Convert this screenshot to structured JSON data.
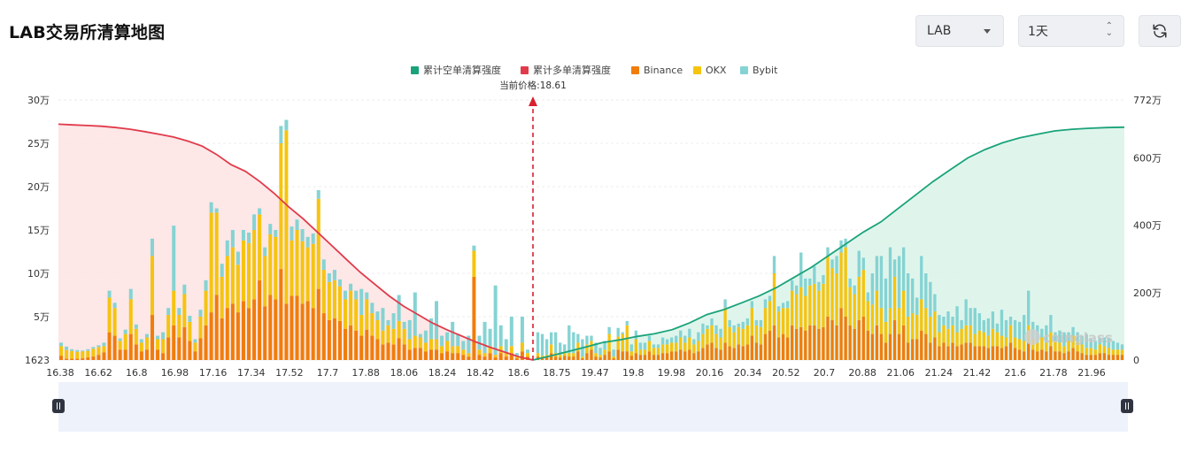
{
  "header": {
    "title": "LAB交易所清算地图",
    "symbol_select": "LAB",
    "range_select": "1天"
  },
  "icons": {
    "refresh": "refresh-icon",
    "caret": "chevron-down-icon",
    "updown": "updown-arrows-icon"
  },
  "colors": {
    "short_cum": "#1aa37a",
    "long_cum": "#e03b4b",
    "binance": "#f07d0a",
    "okx": "#f5c40f",
    "bybit": "#85d3d3",
    "long_area": "#fde3e3",
    "short_area": "#dbf4ea"
  },
  "watermark": "coinglass",
  "chart_data": {
    "type": "bar",
    "legend": [
      "累计空单清算强度",
      "累计多单清算强度",
      "Binance",
      "OKX",
      "Bybit"
    ],
    "current_price_label": "当前价格:18.61",
    "current_price": 18.61,
    "x_tick_labels": [
      "16.38",
      "16.62",
      "16.8",
      "16.98",
      "17.16",
      "17.34",
      "17.52",
      "17.7",
      "17.88",
      "18.06",
      "18.24",
      "18.42",
      "18.6",
      "18.75",
      "19.47",
      "19.8",
      "19.98",
      "20.16",
      "20.34",
      "20.52",
      "20.7",
      "20.88",
      "21.06",
      "21.24",
      "21.42",
      "21.6",
      "21.78",
      "21.96"
    ],
    "y_left_ticks": [
      "1623",
      "5万",
      "10万",
      "15万",
      "20万",
      "25万",
      "30万"
    ],
    "y_left_range": [
      0,
      300000
    ],
    "y_right_ticks": [
      "0",
      "200万",
      "400万",
      "600万",
      "772万"
    ],
    "y_right_range": [
      0,
      7720000
    ],
    "grid": true,
    "legend_position": "top-center",
    "bars_left_of_price": [
      [
        5000,
        11000,
        4000
      ],
      [
        1500,
        10000,
        4000
      ],
      [
        1500,
        9000,
        2000
      ],
      [
        1500,
        8000,
        2000
      ],
      [
        2000,
        8000,
        1000
      ],
      [
        3000,
        7500,
        2000
      ],
      [
        4000,
        9000,
        2000
      ],
      [
        6000,
        9000,
        2000
      ],
      [
        9000,
        7000,
        4000
      ],
      [
        32000,
        40000,
        8000
      ],
      [
        28000,
        32000,
        6000
      ],
      [
        12000,
        10000,
        3000
      ],
      [
        12000,
        18000,
        5000
      ],
      [
        30000,
        40000,
        12000
      ],
      [
        18000,
        18000,
        5000
      ],
      [
        10000,
        10000,
        4000
      ],
      [
        12000,
        14000,
        4000
      ],
      [
        52000,
        68000,
        20000
      ],
      [
        12000,
        12000,
        4000
      ],
      [
        8000,
        16000,
        8000
      ],
      [
        26000,
        26000,
        8000
      ],
      [
        40000,
        40000,
        75000
      ],
      [
        26000,
        26000,
        8000
      ],
      [
        38000,
        38000,
        11000
      ],
      [
        22000,
        22000,
        7000
      ],
      [
        10000,
        10000,
        4000
      ],
      [
        25000,
        25000,
        8000
      ],
      [
        40000,
        40000,
        12000
      ],
      [
        55000,
        115000,
        12000
      ],
      [
        75000,
        95000,
        5000
      ],
      [
        48000,
        48000,
        15000
      ],
      [
        60000,
        60000,
        18000
      ],
      [
        65000,
        65000,
        20000
      ],
      [
        55000,
        55000,
        15000
      ],
      [
        68000,
        70000,
        12000
      ],
      [
        60000,
        75000,
        12000
      ],
      [
        70000,
        80000,
        18000
      ],
      [
        92000,
        76000,
        7000
      ],
      [
        62000,
        58000,
        10000
      ],
      [
        75000,
        70000,
        12000
      ],
      [
        70000,
        72000,
        8000
      ],
      [
        105000,
        145000,
        20000
      ],
      [
        65000,
        200000,
        12000
      ],
      [
        74000,
        64000,
        16000
      ],
      [
        74000,
        76000,
        12000
      ],
      [
        65000,
        72000,
        14000
      ],
      [
        68000,
        62000,
        12000
      ],
      [
        60000,
        74000,
        12000
      ],
      [
        82000,
        104000,
        10000
      ],
      [
        54000,
        50000,
        12000
      ],
      [
        46000,
        44000,
        10000
      ],
      [
        48000,
        44000,
        12000
      ],
      [
        45000,
        40000,
        8000
      ],
      [
        36000,
        34000,
        10000
      ],
      [
        40000,
        40000,
        8000
      ],
      [
        34000,
        36000,
        10000
      ],
      [
        28000,
        24000,
        30000
      ],
      [
        35000,
        35000,
        8000
      ],
      [
        28000,
        26000,
        12000
      ],
      [
        24000,
        22000,
        10000
      ],
      [
        18000,
        16000,
        26000
      ],
      [
        20000,
        20000,
        6000
      ],
      [
        18000,
        18000,
        18000
      ],
      [
        25000,
        20000,
        30000
      ],
      [
        18000,
        18000,
        8000
      ],
      [
        12000,
        12000,
        22000
      ],
      [
        14000,
        14000,
        50000
      ],
      [
        14000,
        12000,
        4000
      ],
      [
        10000,
        10000,
        14000
      ],
      [
        12000,
        12000,
        24000
      ],
      [
        12000,
        12000,
        44000
      ],
      [
        8000,
        8000,
        12000
      ],
      [
        10000,
        12000,
        10000
      ],
      [
        8000,
        8000,
        28000
      ],
      [
        8000,
        8000,
        14000
      ],
      [
        6000,
        6000,
        10000
      ],
      [
        4000,
        4000,
        20000
      ],
      [
        96000,
        30000,
        6000
      ],
      [
        6000,
        6000,
        16000
      ],
      [
        4000,
        4000,
        36000
      ],
      [
        8000,
        8000,
        20000
      ],
      [
        3000,
        3000,
        80000
      ],
      [
        8000,
        8000,
        24000
      ],
      [
        4000,
        4000,
        16000
      ],
      [
        8000,
        8000,
        34000
      ],
      [
        2000,
        2000,
        4000
      ],
      [
        10000,
        10000,
        30000
      ],
      [
        4000,
        4000,
        4000
      ]
    ],
    "bars_right_of_price": [
      [
        4000,
        4000,
        24000
      ],
      [
        2000,
        3000,
        25000
      ],
      [
        3000,
        3000,
        18000
      ],
      [
        8000,
        10000,
        14000
      ],
      [
        4000,
        4000,
        24000
      ],
      [
        3000,
        3000,
        14000
      ],
      [
        5000,
        5000,
        8000
      ],
      [
        4000,
        4000,
        32000
      ],
      [
        4000,
        4000,
        24000
      ],
      [
        10000,
        10000,
        10000
      ],
      [
        2000,
        2000,
        20000
      ],
      [
        8000,
        10000,
        10000
      ],
      [
        12000,
        10000,
        6000
      ],
      [
        4000,
        4000,
        12000
      ],
      [
        3000,
        3000,
        8000
      ],
      [
        6000,
        6000,
        10000
      ],
      [
        10000,
        20000,
        8000
      ],
      [
        2000,
        2000,
        8000
      ],
      [
        12000,
        15000,
        10000
      ],
      [
        10000,
        20000,
        2000
      ],
      [
        10000,
        30000,
        5000
      ],
      [
        5000,
        5000,
        8000
      ],
      [
        8000,
        16000,
        10000
      ],
      [
        6000,
        6000,
        8000
      ],
      [
        6000,
        6000,
        8000
      ],
      [
        10000,
        12000,
        6000
      ],
      [
        6000,
        8000,
        4000
      ],
      [
        6000,
        8000,
        4000
      ],
      [
        8000,
        10000,
        8000
      ],
      [
        8000,
        10000,
        6000
      ],
      [
        10000,
        10000,
        6000
      ],
      [
        10000,
        10000,
        8000
      ],
      [
        12000,
        14000,
        8000
      ],
      [
        10000,
        10000,
        8000
      ],
      [
        12000,
        14000,
        10000
      ],
      [
        8000,
        10000,
        6000
      ],
      [
        10000,
        12000,
        10000
      ],
      [
        14000,
        16000,
        12000
      ],
      [
        18000,
        18000,
        4000
      ],
      [
        20000,
        20000,
        8000
      ],
      [
        14000,
        16000,
        10000
      ],
      [
        12000,
        14000,
        10000
      ],
      [
        20000,
        40000,
        10000
      ],
      [
        16000,
        22000,
        8000
      ],
      [
        14000,
        18000,
        8000
      ],
      [
        18000,
        20000,
        4000
      ],
      [
        16000,
        20000,
        8000
      ],
      [
        18000,
        22000,
        8000
      ],
      [
        28000,
        32000,
        8000
      ],
      [
        20000,
        20000,
        6000
      ],
      [
        18000,
        20000,
        8000
      ],
      [
        30000,
        30000,
        10000
      ],
      [
        34000,
        34000,
        6000
      ],
      [
        40000,
        60000,
        20000
      ],
      [
        26000,
        30000,
        6000
      ],
      [
        30000,
        30000,
        6000
      ],
      [
        26000,
        34000,
        8000
      ],
      [
        40000,
        40000,
        12000
      ],
      [
        36000,
        40000,
        10000
      ],
      [
        38000,
        46000,
        40000
      ],
      [
        34000,
        40000,
        20000
      ],
      [
        40000,
        46000,
        8000
      ],
      [
        40000,
        48000,
        20000
      ],
      [
        36000,
        44000,
        10000
      ],
      [
        38000,
        50000,
        10000
      ],
      [
        50000,
        70000,
        10000
      ],
      [
        46000,
        60000,
        10000
      ],
      [
        40000,
        60000,
        20000
      ],
      [
        60000,
        64000,
        14000
      ],
      [
        50000,
        80000,
        10000
      ],
      [
        40000,
        44000,
        10000
      ],
      [
        36000,
        40000,
        10000
      ],
      [
        46000,
        50000,
        30000
      ],
      [
        50000,
        54000,
        14000
      ],
      [
        34000,
        34000,
        10000
      ],
      [
        30000,
        34000,
        36000
      ],
      [
        40000,
        40000,
        40000
      ],
      [
        30000,
        30000,
        60000
      ],
      [
        20000,
        24000,
        50000
      ],
      [
        30000,
        30000,
        70000
      ],
      [
        46000,
        50000,
        20000
      ],
      [
        30000,
        30000,
        60000
      ],
      [
        40000,
        40000,
        50000
      ],
      [
        20000,
        30000,
        50000
      ],
      [
        24000,
        30000,
        40000
      ],
      [
        24000,
        28000,
        20000
      ],
      [
        34000,
        36000,
        50000
      ],
      [
        30000,
        30000,
        40000
      ],
      [
        20000,
        30000,
        40000
      ],
      [
        26000,
        30000,
        20000
      ],
      [
        16000,
        16000,
        20000
      ],
      [
        20000,
        20000,
        10000
      ],
      [
        16000,
        20000,
        20000
      ],
      [
        20000,
        20000,
        10000
      ],
      [
        16000,
        16000,
        30000
      ],
      [
        18000,
        18000,
        10000
      ],
      [
        20000,
        20000,
        30000
      ],
      [
        20000,
        20000,
        20000
      ],
      [
        16000,
        14000,
        30000
      ],
      [
        16000,
        18000,
        20000
      ],
      [
        16000,
        16000,
        14000
      ],
      [
        14000,
        14000,
        20000
      ],
      [
        16000,
        20000,
        20000
      ],
      [
        16000,
        16000,
        10000
      ],
      [
        14000,
        14000,
        30000
      ],
      [
        16000,
        10000,
        20000
      ],
      [
        20000,
        20000,
        10000
      ],
      [
        14000,
        12000,
        20000
      ],
      [
        12000,
        12000,
        20000
      ],
      [
        10000,
        12000,
        30000
      ],
      [
        20000,
        20000,
        40000
      ],
      [
        12000,
        12000,
        20000
      ],
      [
        10000,
        10000,
        20000
      ],
      [
        12000,
        14000,
        10000
      ],
      [
        10000,
        10000,
        20000
      ],
      [
        16000,
        16000,
        20000
      ],
      [
        10000,
        12000,
        10000
      ],
      [
        10000,
        10000,
        14000
      ],
      [
        8000,
        8000,
        16000
      ],
      [
        10000,
        12000,
        10000
      ],
      [
        14000,
        14000,
        10000
      ],
      [
        10000,
        10000,
        12000
      ],
      [
        8000,
        10000,
        10000
      ],
      [
        6000,
        8000,
        16000
      ],
      [
        6000,
        8000,
        10000
      ],
      [
        6000,
        6000,
        10000
      ],
      [
        8000,
        10000,
        8000
      ],
      [
        8000,
        8000,
        10000
      ],
      [
        6000,
        8000,
        12000
      ],
      [
        6000,
        6000,
        10000
      ],
      [
        6000,
        6000,
        8000
      ],
      [
        6000,
        6000,
        6000
      ]
    ],
    "long_cumulative_right_axis": [
      7000000,
      6980000,
      6960000,
      6940000,
      6900000,
      6850000,
      6780000,
      6700000,
      6620000,
      6500000,
      6350000,
      6100000,
      5800000,
      5600000,
      5300000,
      4950000,
      4550000,
      4200000,
      3800000,
      3400000,
      3000000,
      2600000,
      2250000,
      1900000,
      1600000,
      1350000,
      1100000,
      900000,
      720000,
      540000,
      380000,
      240000,
      100000,
      0
    ],
    "short_cumulative_right_axis": [
      0,
      120000,
      250000,
      380000,
      520000,
      600000,
      700000,
      780000,
      900000,
      1100000,
      1350000,
      1500000,
      1700000,
      1900000,
      2150000,
      2450000,
      2750000,
      3100000,
      3450000,
      3800000,
      4100000,
      4500000,
      4900000,
      5300000,
      5650000,
      6000000,
      6250000,
      6450000,
      6600000,
      6700000,
      6800000,
      6850000,
      6880000,
      6900000,
      6910000
    ]
  }
}
